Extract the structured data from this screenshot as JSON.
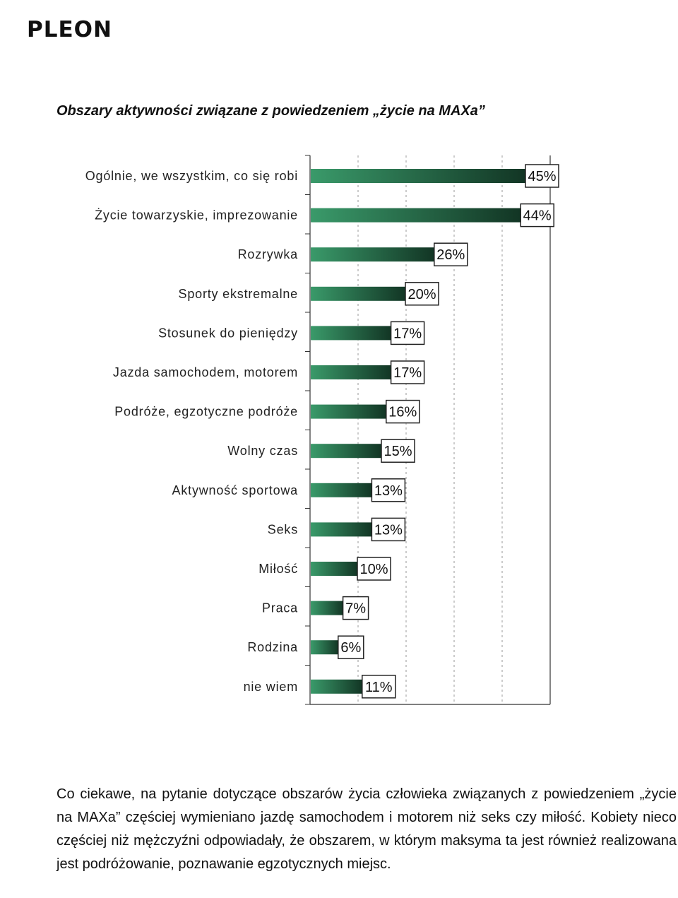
{
  "logo": {
    "text": "PLEON"
  },
  "heading": "Obszary aktywności związane z powiedzeniem „życie na MAXa”",
  "chart_data": {
    "type": "bar",
    "orientation": "horizontal",
    "title": "",
    "xlabel": "",
    "ylabel": "",
    "xlim": [
      0,
      50
    ],
    "grid": "vertical dashed",
    "value_format": "percent",
    "bar_color_start": "#3a9a6a",
    "bar_color_end": "#123524",
    "categories": [
      "Ogólnie, we wszystkim, co się robi",
      "Życie towarzyskie, imprezowanie",
      "Rozrywka",
      "Sporty ekstremalne",
      "Stosunek do pieniędzy",
      "Jazda samochodem, motorem",
      "Podróże, egzotyczne podróże",
      "Wolny czas",
      "Aktywność sportowa",
      "Seks",
      "Miłość",
      "Praca",
      "Rodzina",
      "nie wiem"
    ],
    "values": [
      45,
      44,
      26,
      20,
      17,
      17,
      16,
      15,
      13,
      13,
      10,
      7,
      6,
      11
    ]
  },
  "paragraph": "Co ciekawe, na pytanie dotyczące obszarów życia człowieka związanych z powiedzeniem „życie na MAXa” częściej wymieniano jazdę samochodem i motorem niż seks czy miłość. Kobiety nieco częściej niż mężczyźni odpowiadały, że obszarem, w którym maksyma ta jest również realizowana jest podróżowanie, poznawanie egzotycznych miejsc."
}
